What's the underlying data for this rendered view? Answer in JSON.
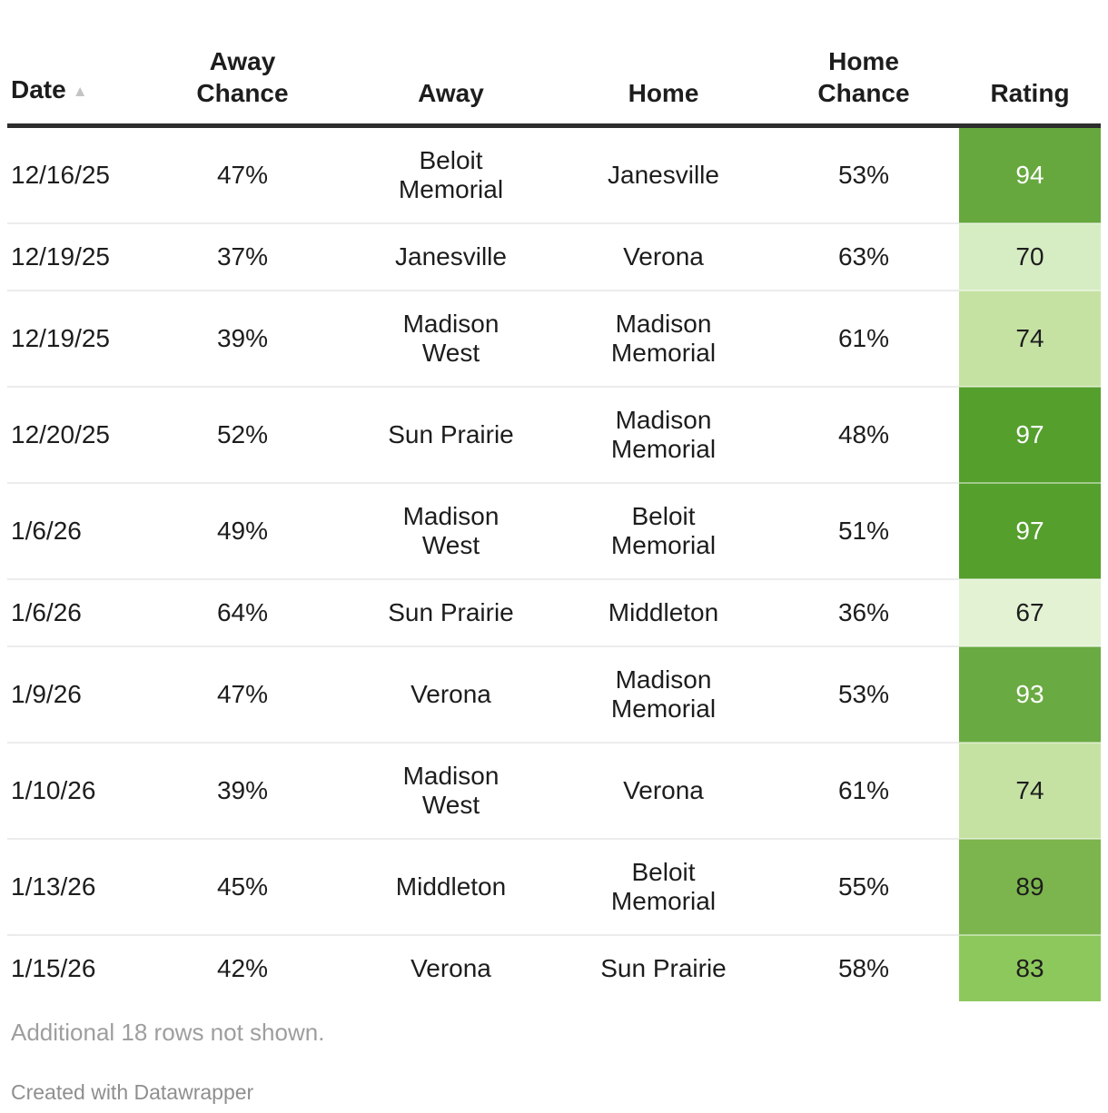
{
  "chart_data": {
    "type": "table",
    "columns": [
      "Date",
      "Away Chance",
      "Away",
      "Home",
      "Home Chance",
      "Rating"
    ],
    "sort": {
      "column": "Date",
      "direction": "ascending"
    },
    "rows": [
      {
        "date": "12/16/25",
        "away_chance": "47%",
        "away": "Beloit\nMemorial",
        "home": "Janesville",
        "home_chance": "53%",
        "rating": 94,
        "rating_bg": "#66a83e",
        "rating_fg": "#ffffff"
      },
      {
        "date": "12/19/25",
        "away_chance": "37%",
        "away": "Janesville",
        "home": "Verona",
        "home_chance": "63%",
        "rating": 70,
        "rating_bg": "#d6ecc3",
        "rating_fg": "#1d1d1d"
      },
      {
        "date": "12/19/25",
        "away_chance": "39%",
        "away": "Madison\nWest",
        "home": "Madison\nMemorial",
        "home_chance": "61%",
        "rating": 74,
        "rating_bg": "#c5e2a3",
        "rating_fg": "#1d1d1d"
      },
      {
        "date": "12/20/25",
        "away_chance": "52%",
        "away": "Sun Prairie",
        "home": "Madison\nMemorial",
        "home_chance": "48%",
        "rating": 97,
        "rating_bg": "#559f2d",
        "rating_fg": "#ffffff"
      },
      {
        "date": "1/6/26",
        "away_chance": "49%",
        "away": "Madison\nWest",
        "home": "Beloit\nMemorial",
        "home_chance": "51%",
        "rating": 97,
        "rating_bg": "#559f2d",
        "rating_fg": "#ffffff"
      },
      {
        "date": "1/6/26",
        "away_chance": "64%",
        "away": "Sun Prairie",
        "home": "Middleton",
        "home_chance": "36%",
        "rating": 67,
        "rating_bg": "#e2f2d3",
        "rating_fg": "#1d1d1d"
      },
      {
        "date": "1/9/26",
        "away_chance": "47%",
        "away": "Verona",
        "home": "Madison\nMemorial",
        "home_chance": "53%",
        "rating": 93,
        "rating_bg": "#6aaa42",
        "rating_fg": "#ffffff"
      },
      {
        "date": "1/10/26",
        "away_chance": "39%",
        "away": "Madison\nWest",
        "home": "Verona",
        "home_chance": "61%",
        "rating": 74,
        "rating_bg": "#c5e2a3",
        "rating_fg": "#1d1d1d"
      },
      {
        "date": "1/13/26",
        "away_chance": "45%",
        "away": "Middleton",
        "home": "Beloit\nMemorial",
        "home_chance": "55%",
        "rating": 89,
        "rating_bg": "#7cb54d",
        "rating_fg": "#1d1d1d"
      },
      {
        "date": "1/15/26",
        "away_chance": "42%",
        "away": "Verona",
        "home": "Sun Prairie",
        "home_chance": "58%",
        "rating": 83,
        "rating_bg": "#8dc85c",
        "rating_fg": "#1d1d1d"
      }
    ]
  },
  "header": {
    "date_label": "Date",
    "sort_icon": "▲",
    "away_chance_label": "Away\nChance",
    "away_label": "Away",
    "home_label": "Home",
    "home_chance_label": "Home\nChance",
    "rating_label": "Rating"
  },
  "footer": {
    "additional_rows_note": "Additional 18 rows not shown.",
    "attribution": "Created with Datawrapper"
  },
  "colors": {
    "header_border": "#2d2d2d",
    "row_divider": "#ececec",
    "text": "#1d1d1d",
    "muted_text": "#9e9e9e",
    "attribution_text": "#8f8f8f",
    "sort_icon": "#c4c4c4",
    "rating_scale_dark": "#559f2d",
    "rating_scale_light": "#e2f2d3"
  }
}
